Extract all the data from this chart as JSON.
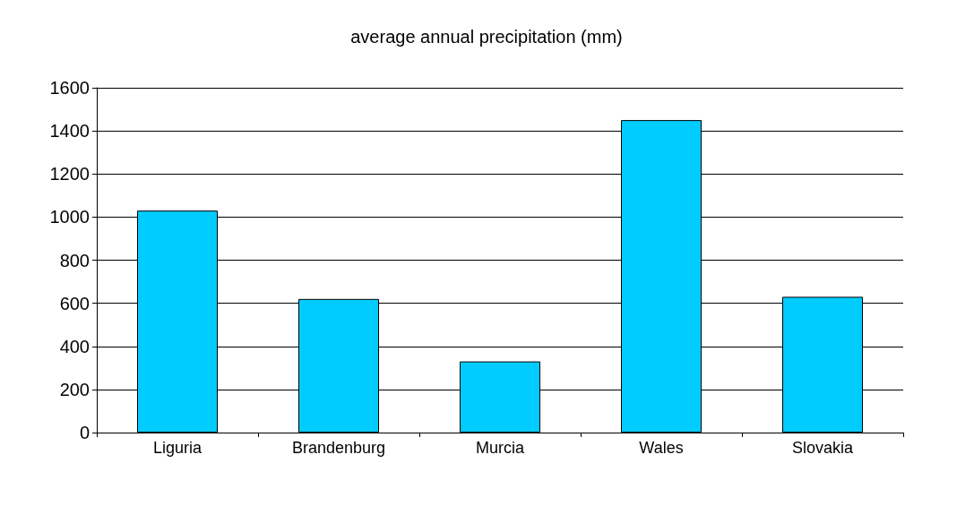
{
  "chart_data": {
    "type": "bar",
    "title": "average annual precipitation (mm)",
    "categories": [
      "Liguria",
      "Brandenburg",
      "Murcia",
      "Wales",
      "Slovakia"
    ],
    "values": [
      1030,
      620,
      330,
      1450,
      630
    ],
    "color": "#00ccff",
    "ylim": [
      0,
      1600
    ],
    "yticks": [
      0,
      200,
      400,
      600,
      800,
      1000,
      1200,
      1400,
      1600
    ],
    "grid": "y"
  }
}
